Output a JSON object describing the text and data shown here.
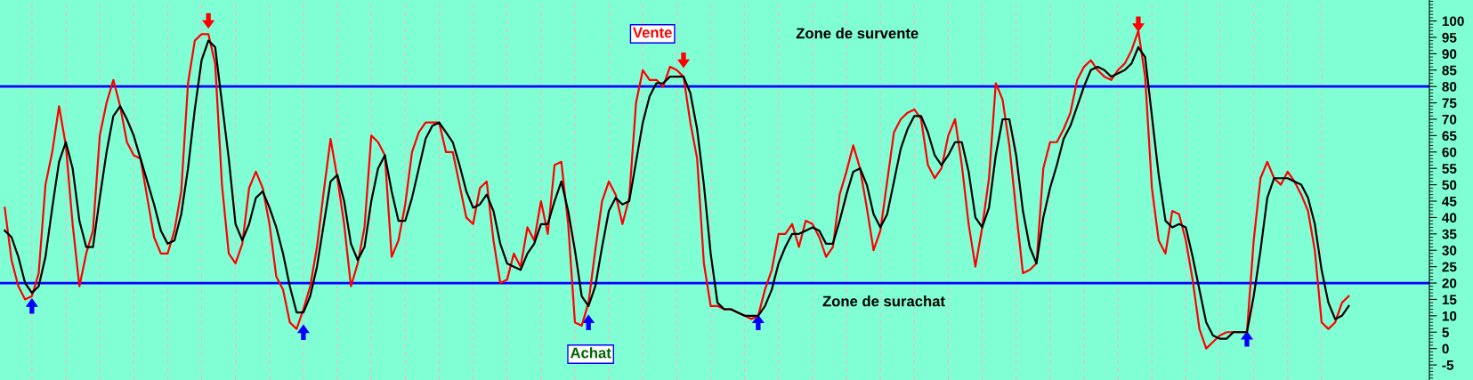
{
  "chart_data": {
    "type": "line",
    "categories": [
      null,
      null,
      null,
      null,
      null,
      null,
      null,
      null,
      null,
      null,
      null,
      null,
      null,
      null,
      null,
      null,
      null,
      null,
      null,
      null,
      null,
      null,
      null,
      null,
      null,
      null,
      null,
      null,
      null,
      null,
      null,
      null,
      null,
      null,
      null,
      null,
      null,
      null,
      null,
      null,
      null,
      null,
      null,
      null,
      null,
      null,
      null,
      null,
      null,
      null,
      null,
      null,
      null,
      null,
      null,
      null,
      null,
      null,
      null,
      null,
      null,
      null,
      null,
      null,
      null,
      null,
      null,
      null,
      null,
      null,
      null,
      null,
      null,
      null,
      null,
      null,
      null,
      null,
      null,
      null,
      null,
      null,
      null,
      null,
      null,
      null,
      null,
      null,
      null,
      null,
      null,
      null,
      null,
      null,
      null,
      null,
      null,
      null,
      null,
      null,
      null,
      null,
      null,
      null,
      null,
      null,
      null,
      null,
      null,
      null,
      null,
      null,
      null,
      null,
      null,
      null,
      null,
      null,
      null,
      null,
      null,
      null,
      null,
      null,
      null,
      null,
      null,
      null,
      null,
      null,
      null,
      null,
      null,
      null,
      null,
      null,
      null,
      null,
      null,
      null,
      null,
      null,
      null,
      null,
      null,
      null,
      null,
      null,
      null,
      null,
      null,
      null,
      null,
      null,
      null,
      null,
      null,
      null,
      null,
      null,
      null,
      null,
      null,
      null,
      null,
      null,
      null,
      null,
      null,
      null,
      null,
      null,
      null,
      null,
      null,
      null,
      null,
      null,
      null,
      null,
      null,
      null,
      null,
      null,
      null,
      null,
      null,
      null,
      null,
      null,
      null,
      null,
      null,
      null,
      null,
      null,
      null,
      null,
      null
    ],
    "series": [
      {
        "color": "#ff0000",
        "values": [
          43,
          27,
          19,
          15,
          16,
          23,
          50,
          60,
          74,
          62,
          38,
          19,
          29,
          36,
          65,
          75,
          82,
          74,
          63,
          59,
          58,
          46,
          34,
          29,
          29,
          36,
          48,
          81,
          94,
          96,
          96,
          87,
          50,
          29,
          26,
          32,
          49,
          54,
          49,
          38,
          22,
          18,
          8,
          6,
          12,
          19,
          31,
          48,
          64,
          52,
          38,
          19,
          26,
          37,
          65,
          63,
          59,
          28,
          33,
          44,
          60,
          66,
          69,
          69,
          69,
          60,
          60,
          50,
          40,
          38,
          49,
          51,
          33,
          20,
          21,
          29,
          25,
          37,
          33,
          45,
          35,
          56,
          57,
          38,
          8,
          7,
          14,
          30,
          45,
          51,
          47,
          38,
          46,
          75,
          85,
          82,
          82,
          80,
          86,
          85,
          83,
          69,
          58,
          26,
          13,
          13,
          12,
          12,
          11,
          10,
          9,
          10,
          18,
          24,
          35,
          35,
          38,
          31,
          39,
          38,
          34,
          28,
          31,
          47,
          54,
          62,
          55,
          43,
          30,
          36,
          51,
          66,
          70,
          72,
          73,
          70,
          56,
          52,
          55,
          65,
          70,
          56,
          38,
          25,
          37,
          52,
          81,
          76,
          62,
          42,
          23,
          24,
          26,
          55,
          63,
          63,
          67,
          72,
          82,
          86,
          88,
          85,
          83,
          82,
          85,
          87,
          91,
          97,
          83,
          49,
          33,
          29,
          42,
          41,
          33,
          21,
          6,
          0,
          2,
          4,
          5,
          5,
          5,
          5,
          33,
          52,
          57,
          52,
          50,
          54,
          51,
          47,
          42,
          30,
          8,
          6,
          8,
          14,
          16
        ]
      },
      {
        "color": "#000000",
        "values": [
          36,
          34,
          28,
          20,
          17,
          19,
          28,
          43,
          57,
          63,
          55,
          39,
          31,
          31,
          46,
          60,
          71,
          74,
          70,
          65,
          58,
          51,
          44,
          36,
          32,
          33,
          41,
          55,
          73,
          88,
          94,
          92,
          75,
          58,
          38,
          33,
          38,
          46,
          48,
          43,
          37,
          29,
          19,
          11,
          11,
          16,
          25,
          38,
          51,
          53,
          45,
          32,
          27,
          31,
          45,
          55,
          59,
          48,
          39,
          39,
          46,
          55,
          64,
          68,
          69,
          66,
          63,
          56,
          48,
          43,
          44,
          47,
          42,
          32,
          26,
          25,
          24,
          29,
          32,
          38,
          38,
          45,
          51,
          42,
          30,
          16,
          13,
          19,
          31,
          42,
          46,
          44,
          45,
          57,
          69,
          77,
          81,
          81,
          83,
          83,
          83,
          78,
          67,
          50,
          29,
          14,
          12,
          12,
          11,
          10,
          10,
          10,
          13,
          18,
          26,
          31,
          35,
          35,
          36,
          37,
          36,
          32,
          32,
          39,
          47,
          54,
          55,
          50,
          41,
          37,
          41,
          51,
          61,
          67,
          71,
          71,
          66,
          59,
          56,
          59,
          63,
          63,
          54,
          40,
          37,
          43,
          59,
          70,
          70,
          59,
          42,
          31,
          26,
          40,
          49,
          56,
          64,
          68,
          74,
          80,
          85,
          86,
          85,
          83,
          84,
          85,
          87,
          92,
          89,
          71,
          53,
          39,
          37,
          38,
          37,
          28,
          18,
          8,
          4,
          3,
          3,
          5,
          5,
          5,
          16,
          30,
          46,
          52,
          52,
          52,
          51,
          50,
          46,
          38,
          24,
          14,
          9,
          10,
          13
        ]
      },
      {
        "type": "scatter",
        "color": "#ff0000",
        "marker": "triangle",
        "values": [
          null,
          null,
          null,
          null,
          null,
          null,
          null,
          null,
          null,
          null,
          null,
          null,
          null,
          null,
          null,
          null,
          null,
          null,
          null,
          null,
          null,
          null,
          null,
          null,
          null,
          null,
          null,
          null,
          null,
          null,
          100,
          null,
          null,
          null,
          null,
          null,
          null,
          null,
          null,
          null,
          null,
          null,
          null,
          null,
          null,
          null,
          null,
          null,
          null,
          null,
          null,
          null,
          null,
          null,
          null,
          null,
          null,
          null,
          null,
          null,
          null,
          null,
          null,
          null,
          null,
          null,
          null,
          null,
          null,
          null,
          null,
          null,
          null,
          null,
          null,
          null,
          null,
          null,
          null,
          null,
          null,
          null,
          null,
          null,
          null,
          null,
          null,
          null,
          null,
          null,
          null,
          null,
          null,
          null,
          null,
          null,
          null,
          null,
          null,
          null,
          88,
          null,
          null,
          null,
          null,
          null,
          null,
          null,
          null,
          null,
          null,
          null,
          null,
          null,
          null,
          null,
          null,
          null,
          null,
          null,
          null,
          null,
          null,
          null,
          null,
          null,
          null,
          null,
          null,
          null,
          null,
          null,
          null,
          null,
          null,
          null,
          null,
          null,
          null,
          null,
          null,
          null,
          null,
          null,
          null,
          null,
          null,
          null,
          null,
          null,
          null,
          null,
          null,
          null,
          null,
          null,
          null,
          null,
          null,
          null,
          null,
          null,
          null,
          null,
          null,
          null,
          null,
          99,
          null,
          null,
          null,
          null,
          null,
          null,
          null,
          null,
          null,
          null,
          null,
          null,
          null,
          null,
          null,
          null,
          null,
          null,
          null,
          null,
          null,
          null,
          null,
          null,
          null,
          null,
          null,
          null,
          null,
          null,
          null
        ]
      },
      {
        "type": "scatter",
        "color": "#0000ff",
        "marker": "triangle",
        "values": [
          null,
          null,
          null,
          null,
          13,
          null,
          null,
          null,
          null,
          null,
          null,
          null,
          null,
          null,
          null,
          null,
          null,
          null,
          null,
          null,
          null,
          null,
          null,
          null,
          null,
          null,
          null,
          null,
          null,
          null,
          null,
          null,
          null,
          null,
          null,
          null,
          null,
          null,
          null,
          null,
          null,
          null,
          null,
          null,
          5,
          null,
          null,
          null,
          null,
          null,
          null,
          null,
          null,
          null,
          null,
          null,
          null,
          null,
          null,
          null,
          null,
          null,
          null,
          null,
          null,
          null,
          null,
          null,
          null,
          null,
          null,
          null,
          null,
          null,
          null,
          null,
          null,
          null,
          null,
          null,
          null,
          null,
          null,
          null,
          null,
          null,
          8,
          null,
          null,
          null,
          null,
          null,
          null,
          null,
          null,
          null,
          null,
          null,
          null,
          null,
          null,
          null,
          null,
          null,
          null,
          null,
          null,
          null,
          null,
          null,
          null,
          8,
          null,
          null,
          null,
          null,
          null,
          null,
          null,
          null,
          null,
          null,
          null,
          null,
          null,
          null,
          null,
          null,
          null,
          null,
          null,
          null,
          null,
          null,
          null,
          null,
          null,
          null,
          null,
          null,
          null,
          null,
          null,
          null,
          null,
          null,
          null,
          null,
          null,
          null,
          null,
          null,
          null,
          null,
          null,
          null,
          null,
          null,
          null,
          null,
          null,
          null,
          null,
          null,
          null,
          null,
          null,
          null,
          null,
          null,
          null,
          null,
          null,
          null,
          null,
          null,
          null,
          null,
          null,
          null,
          null,
          null,
          null,
          3,
          null,
          null,
          null,
          null,
          null,
          null,
          null,
          null,
          null,
          null,
          null,
          null,
          null,
          null,
          null
        ]
      }
    ],
    "ylim": [
      -9.6,
      106.4
    ],
    "yticks": [
      -5,
      0,
      5,
      10,
      15,
      20,
      25,
      30,
      35,
      40,
      45,
      50,
      55,
      60,
      65,
      70,
      75,
      80,
      85,
      90,
      95,
      100
    ],
    "ref_lines": [
      {
        "axis": "y",
        "value": 80,
        "color": "#0000ff"
      },
      {
        "axis": "y",
        "value": 20,
        "color": "#0000ff"
      }
    ],
    "annotations": [
      "Vente",
      "Achat",
      "Zone de survente",
      "Zone de surachat"
    ],
    "grid": "x",
    "tick_labels": "y"
  }
}
